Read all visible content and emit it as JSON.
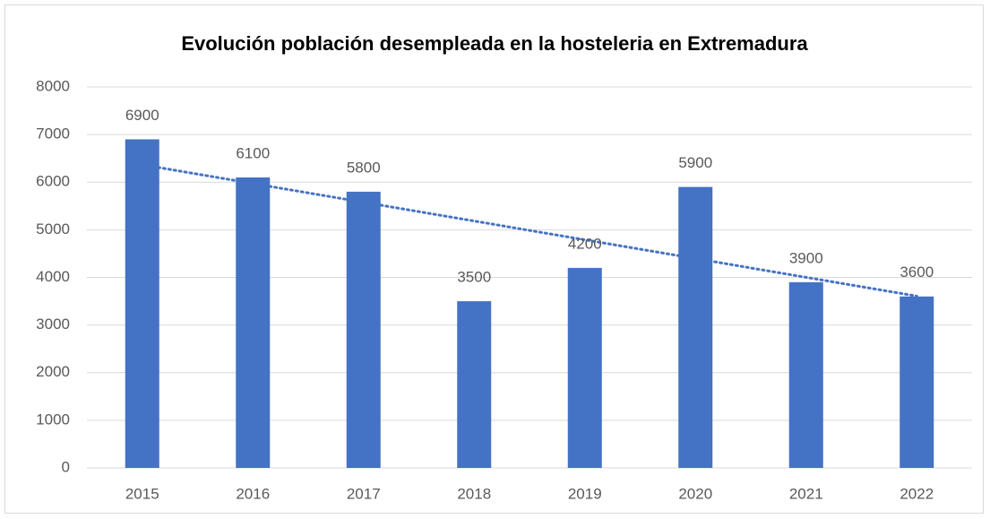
{
  "chart_data": {
    "type": "bar",
    "title": "Evolución población desempleada en la hosteleria en Extremadura",
    "categories": [
      "2015",
      "2016",
      "2017",
      "2018",
      "2019",
      "2020",
      "2021",
      "2022"
    ],
    "values": [
      6900,
      6100,
      5800,
      3500,
      4200,
      5900,
      3900,
      3600
    ],
    "color": "#4472c4",
    "ylim": [
      0,
      8000
    ],
    "yticks": [
      0,
      1000,
      2000,
      3000,
      4000,
      5000,
      6000,
      7000,
      8000
    ],
    "grid": true,
    "data_labels": true,
    "trendline": "linear",
    "trendline_color": "#4472c4"
  }
}
